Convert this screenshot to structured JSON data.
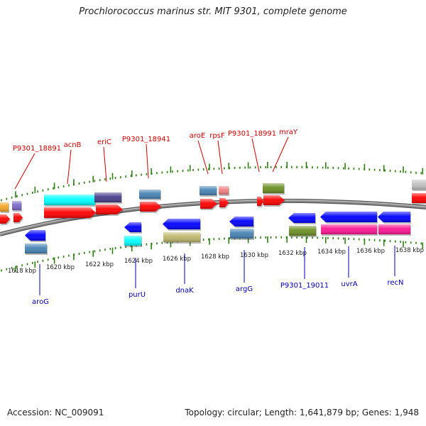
{
  "title": "Prochlorococcus marinus str. MIT 9301, complete genome",
  "footer": {
    "accession": "Accession: NC_009091",
    "summary": "Topology: circular; Length: 1,641,879 bp; Genes: 1,948"
  },
  "colors": {
    "backbone": "#8a8a8a",
    "tick": "#2e7d12",
    "upper_label": "#cc0000",
    "lower_label": "#0000aa",
    "scale_label": "#222222"
  },
  "scale": {
    "unit": "kbp",
    "major_labels": [
      "1618 kbp",
      "1620 kbp",
      "1622 kbp",
      "1624 kbp",
      "1626 kbp",
      "1628 kbp",
      "1630 kbp",
      "1632 kbp",
      "1634 kbp",
      "1636 kbp",
      "1638 kbp"
    ]
  },
  "upper_labels": [
    {
      "name": "P9301_18891"
    },
    {
      "name": "acnB"
    },
    {
      "name": "eriC"
    },
    {
      "name": "P9301_18941"
    },
    {
      "name": "aroE"
    },
    {
      "name": "rpsF"
    },
    {
      "name": "P9301_18991"
    },
    {
      "name": "mraY"
    }
  ],
  "lower_labels": [
    {
      "name": "aroG"
    },
    {
      "name": "purU"
    },
    {
      "name": "dnaK"
    },
    {
      "name": "argG"
    },
    {
      "name": "P9301_19011"
    },
    {
      "name": "uvrA"
    },
    {
      "name": "recN"
    }
  ],
  "features": [
    {
      "color": "#f5a623"
    },
    {
      "color": "#7b68c8"
    },
    {
      "color": "#ff0000"
    },
    {
      "color": "#00ffff"
    },
    {
      "color": "#483d8b"
    },
    {
      "color": "#4682b4"
    },
    {
      "color": "#0000ff"
    },
    {
      "color": "#bdb76b"
    },
    {
      "color": "#f08080"
    },
    {
      "color": "#6b8e23"
    },
    {
      "color": "#ff1493"
    },
    {
      "color": "#c0c0c0"
    }
  ]
}
